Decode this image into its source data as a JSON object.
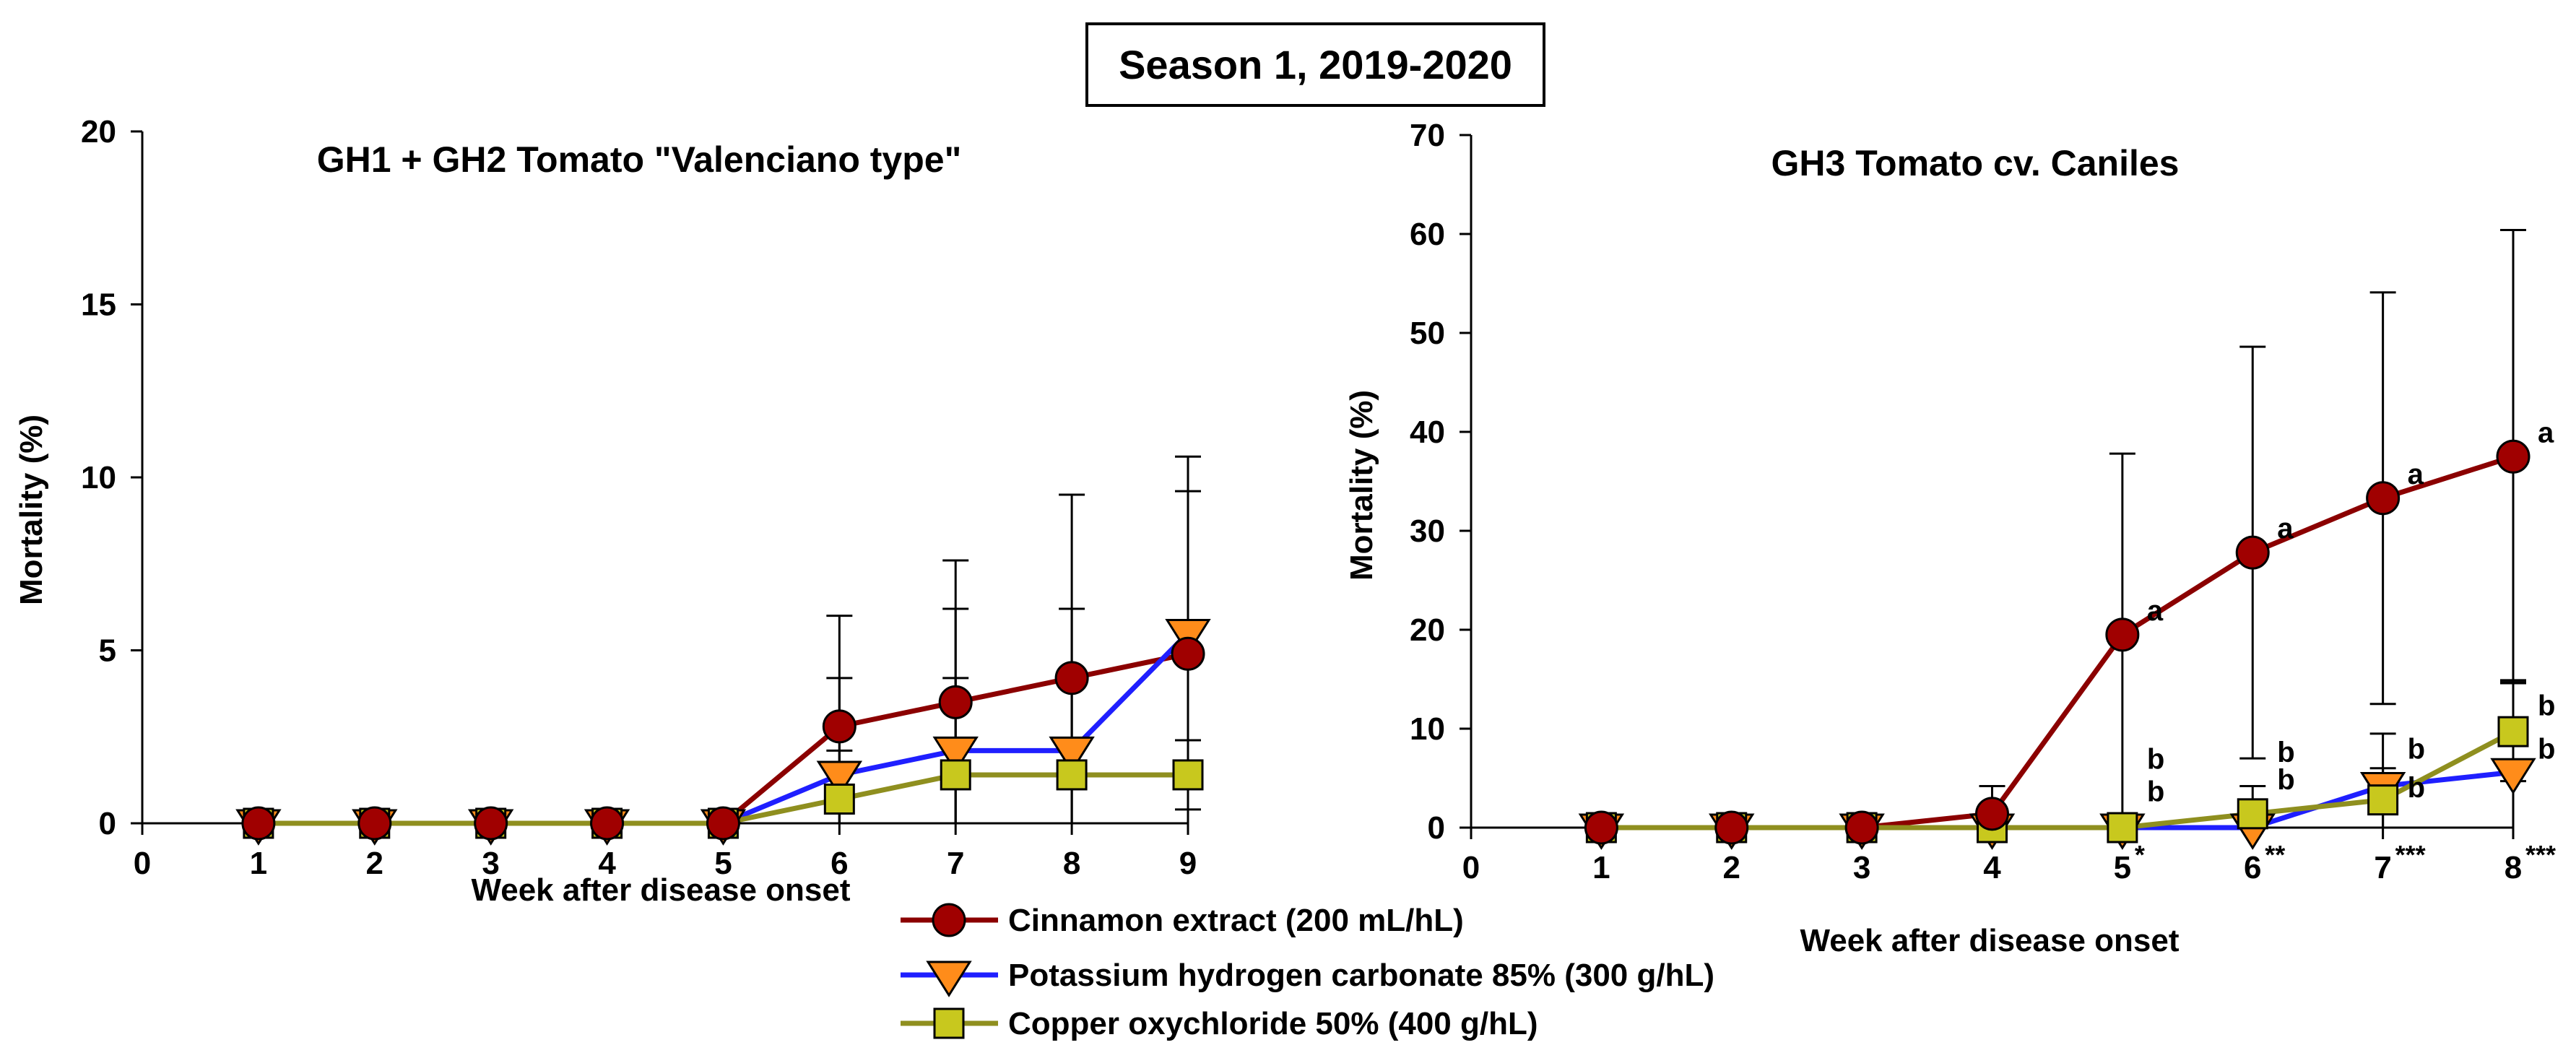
{
  "figure": {
    "suptitle": "Season 1, 2019-2020"
  },
  "legend": [
    {
      "label": "Cinnamon extract (200 mL/hL)",
      "line_color": "#8b0000",
      "marker": "circle",
      "marker_fill": "#a00000"
    },
    {
      "label": "Potassium hydrogen carbonate 85% (300 g/hL)",
      "line_color": "#1f1fff",
      "marker": "triangle-down",
      "marker_fill": "#ff8c1a"
    },
    {
      "label": "Copper oxychloride 50% (400 g/hL)",
      "line_color": "#8f8f1f",
      "marker": "square",
      "marker_fill": "#c8c81e"
    }
  ],
  "chart_data": [
    {
      "type": "line",
      "title": "GH1 + GH2 Tomato \"Valenciano type\"",
      "xlabel": "Week after disease onset",
      "ylabel": "Mortality (%)",
      "xlim": [
        0,
        9
      ],
      "ylim": [
        0,
        20
      ],
      "xticks": [
        "0",
        "1",
        "2",
        "3",
        "4",
        "5",
        "6",
        "7",
        "8",
        "9"
      ],
      "yticks": [
        "0",
        "5",
        "10",
        "15",
        "20"
      ],
      "x": [
        1,
        2,
        3,
        4,
        5,
        6,
        7,
        8,
        9
      ],
      "series": [
        {
          "name": "Cinnamon extract (200 mL/hL)",
          "values": [
            0,
            0,
            0,
            0,
            0,
            2.8,
            3.5,
            4.2,
            4.9
          ],
          "error": [
            0,
            0,
            0,
            0,
            0,
            3.2,
            4.1,
            5.3,
            5.7
          ]
        },
        {
          "name": "Potassium hydrogen carbonate 85% (300 g/hL)",
          "values": [
            0,
            0,
            0,
            0,
            0,
            1.4,
            2.1,
            2.1,
            5.5
          ],
          "error": [
            0,
            0,
            0,
            0,
            0,
            2.8,
            4.1,
            4.1,
            4.1
          ]
        },
        {
          "name": "Copper oxychloride 50% (400 g/hL)",
          "values": [
            0,
            0,
            0,
            0,
            0,
            0.7,
            1.4,
            1.4,
            1.4
          ],
          "error": [
            0,
            0,
            0,
            0,
            0,
            1.4,
            2.8,
            2.8,
            1.0
          ]
        }
      ],
      "annotations": []
    },
    {
      "type": "line",
      "title": "GH3 Tomato cv. Caniles",
      "xlabel": "Week after disease onset",
      "ylabel": "Mortality (%)",
      "xlim": [
        0,
        8
      ],
      "ylim": [
        0,
        70
      ],
      "xticks": [
        "0",
        "1",
        "2",
        "3",
        "4",
        "5",
        "6",
        "7",
        "8"
      ],
      "xtick_superscripts": [
        "",
        "",
        "",
        "",
        "",
        "*",
        "**",
        "***",
        "***"
      ],
      "yticks": [
        "0",
        "10",
        "20",
        "30",
        "40",
        "50",
        "60",
        "70"
      ],
      "x": [
        1,
        2,
        3,
        4,
        5,
        6,
        7,
        8
      ],
      "series": [
        {
          "name": "Cinnamon extract (200 mL/hL)",
          "values": [
            0,
            0,
            0,
            1.4,
            19.5,
            27.8,
            33.3,
            37.5
          ],
          "error": [
            0,
            0,
            0,
            2.8,
            18.3,
            20.8,
            20.8,
            22.9
          ]
        },
        {
          "name": "Potassium hydrogen carbonate 85% (300 g/hL)",
          "values": [
            0,
            0,
            0,
            0,
            0,
            0,
            4.2,
            5.6
          ],
          "error": [
            0,
            0,
            0,
            0,
            0,
            0,
            5.3,
            9.3
          ]
        },
        {
          "name": "Copper oxychloride 50% (400 g/hL)",
          "values": [
            0,
            0,
            0,
            0,
            0,
            1.4,
            2.8,
            9.7
          ],
          "error": [
            0,
            0,
            0,
            0,
            0,
            2.8,
            3.2,
            5.0
          ]
        }
      ],
      "annotations": [
        {
          "x": 5,
          "y": 19.5,
          "text": "a"
        },
        {
          "x": 6,
          "y": 27.8,
          "text": "a"
        },
        {
          "x": 7,
          "y": 33.3,
          "text": "a"
        },
        {
          "x": 8,
          "y": 37.5,
          "text": "a"
        },
        {
          "x": 5,
          "y": 4.5,
          "text": "b"
        },
        {
          "x": 5,
          "y": 1.2,
          "text": "b"
        },
        {
          "x": 6,
          "y": 5.2,
          "text": "b"
        },
        {
          "x": 6,
          "y": 2.4,
          "text": "b"
        },
        {
          "x": 7,
          "y": 5.5,
          "text": "b"
        },
        {
          "x": 7,
          "y": 1.6,
          "text": "b"
        },
        {
          "x": 8,
          "y": 9.9,
          "text": "b"
        },
        {
          "x": 8,
          "y": 5.5,
          "text": "b"
        }
      ]
    }
  ]
}
